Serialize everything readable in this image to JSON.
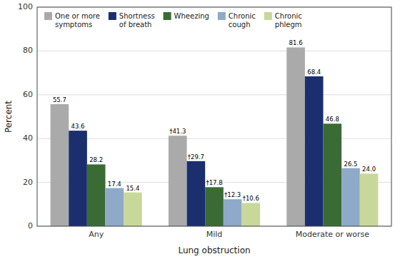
{
  "chart_data": {
    "type": "bar",
    "categories": [
      "Any",
      "Mild",
      "Moderate or worse"
    ],
    "series": [
      {
        "name": "One or more\nsymptoms",
        "color": "#aaaaaa",
        "values": [
          55.7,
          41.3,
          81.6
        ],
        "value_labels": [
          "55.7",
          "†41.3",
          "81.6"
        ]
      },
      {
        "name": "Shortness\nof breath",
        "color": "#1b2f6e",
        "values": [
          43.6,
          29.7,
          68.4
        ],
        "value_labels": [
          "43.6",
          "†29.7",
          "68.4"
        ]
      },
      {
        "name": "Wheezing",
        "color": "#3a6b35",
        "values": [
          28.2,
          17.8,
          46.8
        ],
        "value_labels": [
          "28.2",
          "†17.8",
          "46.8"
        ]
      },
      {
        "name": "Chronic\ncough",
        "color": "#8fa9c8",
        "values": [
          17.4,
          12.3,
          26.5
        ],
        "value_labels": [
          "17.4",
          "†12.3",
          "26.5"
        ]
      },
      {
        "name": "Chronic\nphlegm",
        "color": "#c8d89a",
        "values": [
          15.4,
          10.6,
          24.0
        ],
        "value_labels": [
          "15.4",
          "†10.6",
          "24.0"
        ]
      }
    ],
    "xlabel": "Lung obstruction",
    "ylabel": "Percent",
    "ylim": [
      0,
      100
    ],
    "yticks": [
      0,
      20,
      40,
      60,
      80,
      100
    ],
    "grid": true,
    "legend": "upper left",
    "data_labels": true
  }
}
